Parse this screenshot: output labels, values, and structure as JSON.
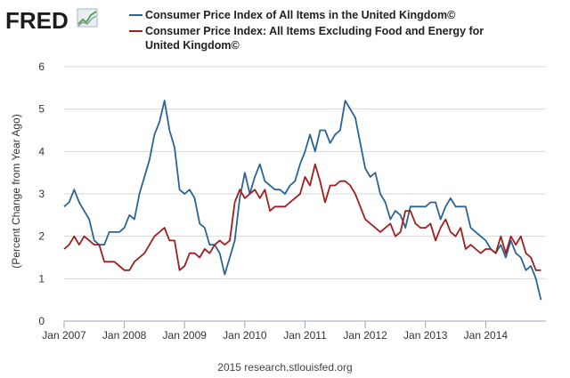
{
  "logo": {
    "text": "FRED"
  },
  "footer": {
    "text": "2015 research.stlouisfed.org"
  },
  "colors": {
    "series1": "#2a6496",
    "series2": "#a01e1e",
    "grid": "#d8d8d8",
    "axis": "#9aa7bd"
  },
  "chart_data": {
    "type": "line",
    "title": "",
    "xlabel": "",
    "ylabel": "(Percent Change from Year Ago)",
    "ylim": [
      0,
      6
    ],
    "yticks": [
      0,
      1,
      2,
      3,
      4,
      5,
      6
    ],
    "xlim": [
      2007.0,
      2015.0
    ],
    "xticks": [
      {
        "value": 2007.0,
        "label": "Jan 2007"
      },
      {
        "value": 2008.0,
        "label": "Jan 2008"
      },
      {
        "value": 2009.0,
        "label": "Jan 2009"
      },
      {
        "value": 2010.0,
        "label": "Jan 2010"
      },
      {
        "value": 2011.0,
        "label": "Jan 2011"
      },
      {
        "value": 2012.0,
        "label": "Jan 2012"
      },
      {
        "value": 2013.0,
        "label": "Jan 2013"
      },
      {
        "value": 2014.0,
        "label": "Jan 2014"
      }
    ],
    "grid": true,
    "legend": "top",
    "x_start": "Jan 2007",
    "frequency": "monthly",
    "series": [
      {
        "name": "Consumer Price Index of All Items in the United Kingdom©",
        "color": "#2a6496",
        "values": [
          2.7,
          2.8,
          3.1,
          2.8,
          2.6,
          2.4,
          1.9,
          1.8,
          1.8,
          2.1,
          2.1,
          2.1,
          2.2,
          2.5,
          2.4,
          3.0,
          3.4,
          3.8,
          4.4,
          4.7,
          5.2,
          4.5,
          4.1,
          3.1,
          3.0,
          3.1,
          2.9,
          2.3,
          2.2,
          1.8,
          1.8,
          1.6,
          1.1,
          1.5,
          1.9,
          2.9,
          3.5,
          3.0,
          3.4,
          3.7,
          3.3,
          3.2,
          3.1,
          3.1,
          3.0,
          3.2,
          3.3,
          3.7,
          4.0,
          4.4,
          4.0,
          4.5,
          4.5,
          4.2,
          4.4,
          4.5,
          5.2,
          5.0,
          4.8,
          4.2,
          3.6,
          3.4,
          3.5,
          3.0,
          2.8,
          2.4,
          2.6,
          2.5,
          2.2,
          2.7,
          2.7,
          2.7,
          2.7,
          2.8,
          2.8,
          2.4,
          2.7,
          2.9,
          2.7,
          2.7,
          2.7,
          2.2,
          2.1,
          2.0,
          1.9,
          1.7,
          1.6,
          1.8,
          1.5,
          1.9,
          1.6,
          1.5,
          1.2,
          1.3,
          1.0,
          0.5
        ]
      },
      {
        "name": "Consumer Price Index: All Items Excluding Food and Energy for United Kingdom©",
        "color": "#a01e1e",
        "values": [
          1.7,
          1.8,
          2.0,
          1.8,
          2.0,
          1.9,
          1.8,
          1.8,
          1.4,
          1.4,
          1.4,
          1.3,
          1.2,
          1.2,
          1.4,
          1.5,
          1.6,
          1.8,
          2.0,
          2.1,
          2.2,
          1.9,
          1.9,
          1.2,
          1.3,
          1.6,
          1.6,
          1.5,
          1.7,
          1.6,
          1.8,
          1.9,
          1.8,
          1.9,
          2.8,
          3.1,
          2.9,
          3.0,
          3.1,
          2.9,
          3.1,
          2.6,
          2.7,
          2.7,
          2.7,
          2.8,
          2.9,
          3.0,
          3.4,
          3.2,
          3.7,
          3.3,
          2.8,
          3.2,
          3.2,
          3.3,
          3.3,
          3.2,
          3.0,
          2.7,
          2.4,
          2.3,
          2.2,
          2.1,
          2.2,
          2.3,
          2.0,
          2.1,
          2.6,
          2.6,
          2.3,
          2.2,
          2.2,
          2.3,
          1.9,
          2.2,
          2.4,
          2.1,
          2.0,
          2.2,
          1.7,
          1.8,
          1.7,
          1.6,
          1.7,
          1.7,
          1.6,
          2.0,
          1.6,
          2.0,
          1.8,
          2.0,
          1.6,
          1.5,
          1.2,
          1.2
        ]
      }
    ]
  }
}
